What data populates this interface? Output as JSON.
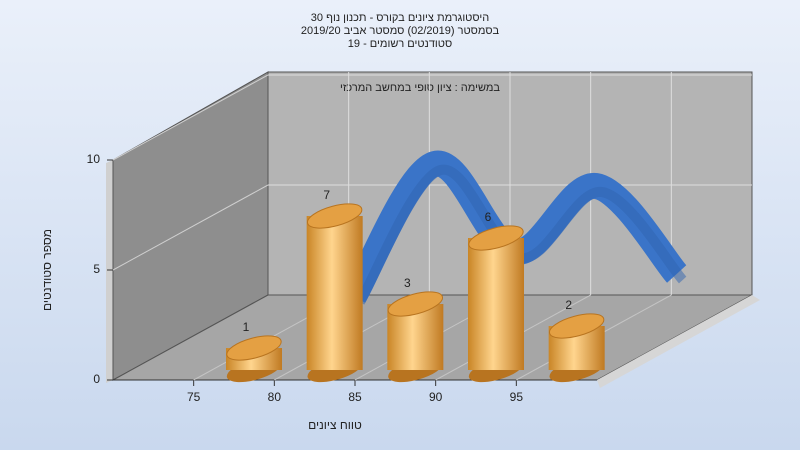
{
  "chart_data": {
    "type": "histogram",
    "title": [
      "היסטוגרמת ציונים בקורס - תכנון נוף 30",
      "בסמסטר  (02/2019)  סמסטר אביב 2019/20",
      "סטודנטים רשומים - 19"
    ],
    "annotation": "במשימה : ציון סופי במחשב המרכזי",
    "xlabel": "טווח ציונים",
    "ylabel": "מספר סטודנטים",
    "bins": [
      75,
      80,
      85,
      90,
      95,
      100
    ],
    "values": [
      1,
      7,
      3,
      6,
      2
    ],
    "color": "#e4a043",
    "line_color": "#3a74c8",
    "xlim": [
      70,
      100
    ],
    "xticks": [
      75,
      80,
      85,
      90,
      95
    ],
    "ylim": [
      0,
      10
    ],
    "yticks": [
      0,
      5,
      10
    ],
    "grid": true
  }
}
